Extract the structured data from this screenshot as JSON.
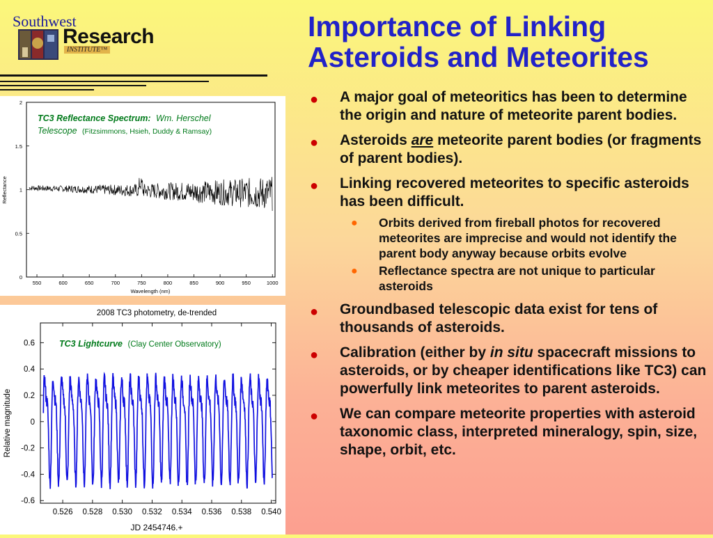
{
  "logo": {
    "top": "Southwest",
    "main": "Research",
    "sub": "INSTITUTE™"
  },
  "title": "Importance of Linking Asteroids and Meteorites",
  "bullets": {
    "b1": "A major goal of meteoritics has been to determine the origin and nature of meteorite parent bodies.",
    "b2_pre": "Asteroids ",
    "b2_em": "are",
    "b2_post": " meteorite parent bodies (or fragments of parent bodies).",
    "b3": "Linking recovered meteorites to specific asteroids has been difficult.",
    "b3_sub1": "Orbits derived from fireball photos for recovered meteorites are imprecise and would not identify the parent body anyway because orbits evolve",
    "b3_sub2": "Reflectance spectra are not unique to particular asteroids",
    "b4": "Groundbased telescopic data exist for tens of thousands of asteroids.",
    "b5_pre": "Calibration (either by ",
    "b5_em": "in situ",
    "b5_post": " spacecraft missions to asteroids, or by cheaper identifications like TC3) can powerfully link meteorites to parent asteroids.",
    "b6": "We can compare meteorite properties with asteroid taxonomic class, interpreted mineralogy, spin, size, shape, orbit, etc."
  },
  "chart_data": [
    {
      "type": "line",
      "annotation_title": "TC3 Reflectance Spectrum:",
      "annotation_source": "Wm. Herschel",
      "annotation_line2_italic": "Telescope",
      "annotation_line2_credit": "(Fitzsimmons, Hsieh, Duddy & Ramsay)",
      "xlabel": "Wavelength (nm)",
      "ylabel": "Reflectance",
      "xlim": [
        530,
        1005
      ],
      "ylim": [
        0,
        2
      ],
      "x_ticks": [
        "550",
        "600",
        "650",
        "700",
        "750",
        "800",
        "850",
        "900",
        "950",
        "1000"
      ],
      "y_ticks": [
        "0",
        "0.5",
        "1",
        "1.5",
        "2"
      ],
      "series": [
        {
          "color": "#000000",
          "x_range": [
            535,
            1000
          ],
          "mean": 1.02,
          "slope": -0.00014,
          "noise_start": 0.03,
          "noise_end": 0.2
        }
      ]
    },
    {
      "type": "line",
      "title": "2008 TC3 photometry, de-trended",
      "annotation_title": "TC3 Lightcurve",
      "annotation_credit": "(Clay Center Observatory)",
      "xlabel": "JD 2454746.+",
      "ylabel": "Relative magnitude",
      "xlim": [
        0.5245,
        0.5403
      ],
      "ylim": [
        -0.62,
        0.75
      ],
      "x_ticks": [
        "0.526",
        "0.528",
        "0.530",
        "0.532",
        "0.534",
        "0.536",
        "0.538",
        "0.540"
      ],
      "y_ticks": [
        "0.6",
        "0.4",
        "0.2",
        "0",
        "-0.2",
        "-0.4",
        "-0.6"
      ],
      "series": [
        {
          "color": "#1010e0",
          "x_range": [
            0.5247,
            0.5401
          ],
          "period": 0.000575,
          "amplitude": 0.48,
          "offset": 0.0
        }
      ]
    }
  ]
}
